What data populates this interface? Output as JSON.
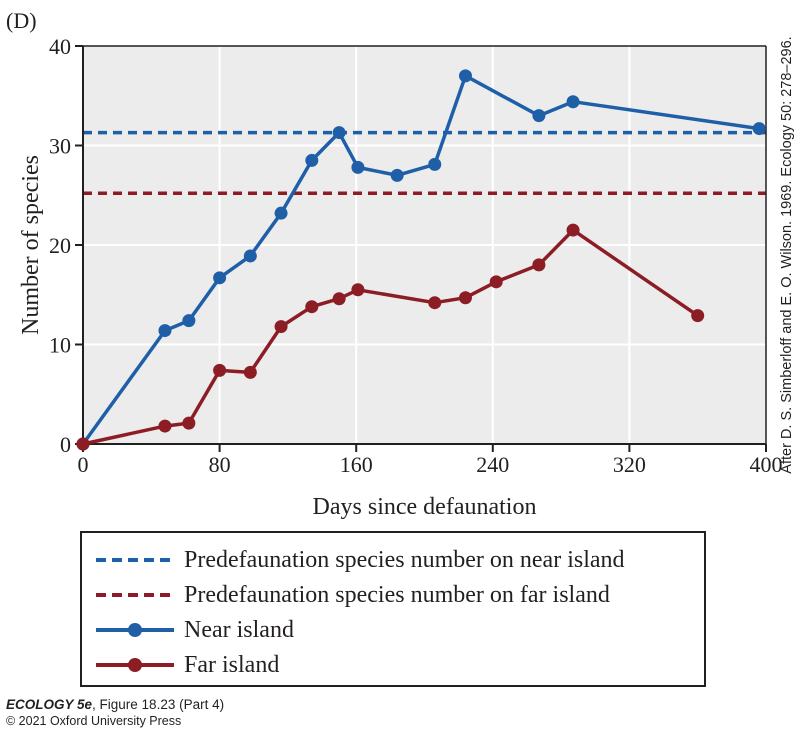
{
  "figure": {
    "panel_label": "(D)",
    "credit": "After D. S. Simberloff and E. O. Wilson. 1969. Ecology 50: 278–296.",
    "footer": {
      "book_title": "ECOLOGY 5e",
      "figure_ref": ", Figure 18.23 (Part 4)",
      "copyright": "© 2021 Oxford University Press"
    }
  },
  "colors": {
    "near": "#1f5fa8",
    "far": "#8c1d24",
    "plot_bg": "#ececec",
    "grid": "#ffffff",
    "axis": "#231f20"
  },
  "chart_data": {
    "type": "line",
    "title": "",
    "xlabel": "Days since defaunation",
    "ylabel": "Number of species",
    "xlim": [
      0,
      400
    ],
    "ylim": [
      0,
      40
    ],
    "x_ticks": [
      0,
      80,
      160,
      240,
      320,
      400
    ],
    "y_ticks": [
      0,
      10,
      20,
      30,
      40
    ],
    "grid": true,
    "legend_position": "below",
    "series": [
      {
        "name": "Predefaunation species number on near island",
        "style": "dashed",
        "color": "#1f5fa8",
        "x": [
          0,
          400
        ],
        "y": [
          31.3,
          31.3
        ]
      },
      {
        "name": "Predefaunation species number on far island",
        "style": "dashed",
        "color": "#8c1d24",
        "x": [
          0,
          400
        ],
        "y": [
          25.2,
          25.2
        ]
      },
      {
        "name": "Near island",
        "style": "solid-markers",
        "color": "#1f5fa8",
        "x": [
          0,
          48,
          62,
          80,
          98,
          116,
          134,
          150,
          161,
          184,
          206,
          224,
          267,
          287,
          396
        ],
        "y": [
          0,
          11.4,
          12.4,
          16.7,
          18.9,
          23.2,
          28.5,
          31.3,
          27.8,
          27.0,
          28.1,
          37.0,
          33.0,
          34.4,
          31.7
        ]
      },
      {
        "name": "Far island",
        "style": "solid-markers",
        "color": "#8c1d24",
        "x": [
          0,
          48,
          62,
          80,
          98,
          116,
          134,
          150,
          161,
          206,
          224,
          242,
          267,
          287,
          360
        ],
        "y": [
          0,
          1.8,
          2.1,
          7.4,
          7.2,
          11.8,
          13.8,
          14.6,
          15.5,
          14.2,
          14.7,
          16.3,
          18.0,
          21.5,
          12.9
        ]
      }
    ]
  }
}
